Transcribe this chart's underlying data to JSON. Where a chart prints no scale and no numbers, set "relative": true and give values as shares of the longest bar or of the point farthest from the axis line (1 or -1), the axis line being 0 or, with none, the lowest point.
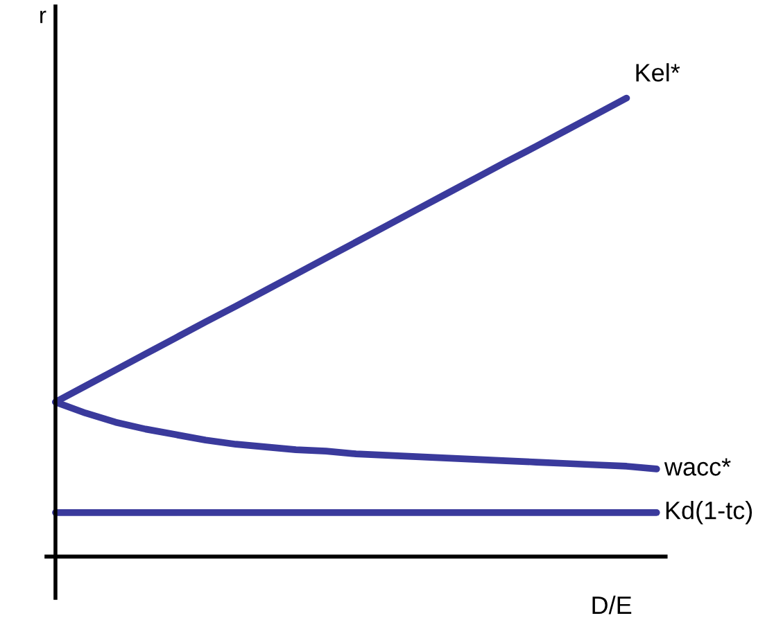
{
  "chart_data": {
    "type": "line",
    "relative": true,
    "xlabel": "D/E",
    "ylabel": "r",
    "categories": [
      null,
      null,
      null,
      null,
      null,
      null,
      null,
      null,
      null,
      null,
      null,
      null,
      null,
      null,
      null,
      null,
      null,
      null,
      null,
      null,
      null
    ],
    "legend": false,
    "marker": "none",
    "line_style": "solid",
    "series": [
      {
        "name": "Kel*",
        "color": "#3a3a9c",
        "values": [
          0.337,
          0.372,
          0.407,
          0.442,
          0.477,
          0.512,
          0.546,
          0.581,
          0.616,
          0.651,
          0.686,
          0.721,
          0.756,
          0.791,
          0.826,
          0.861,
          0.895,
          0.93,
          0.965,
          1.0,
          null
        ]
      },
      {
        "name": "wacc*",
        "color": "#3a3a9c",
        "values": [
          0.337,
          0.313,
          0.293,
          0.278,
          0.266,
          0.254,
          0.245,
          0.239,
          0.233,
          0.23,
          0.224,
          0.221,
          0.218,
          0.215,
          0.212,
          0.209,
          0.206,
          0.203,
          0.2,
          0.197,
          0.191
        ]
      },
      {
        "name": "Kd(1-tc)",
        "color": "#3a3a9c",
        "values": [
          0.096,
          0.096,
          0.096,
          0.096,
          0.096,
          0.096,
          0.096,
          0.096,
          0.096,
          0.096,
          0.096,
          0.096,
          0.096,
          0.096,
          0.096,
          0.096,
          0.096,
          0.096,
          0.096,
          0.096,
          0.096
        ]
      }
    ]
  }
}
